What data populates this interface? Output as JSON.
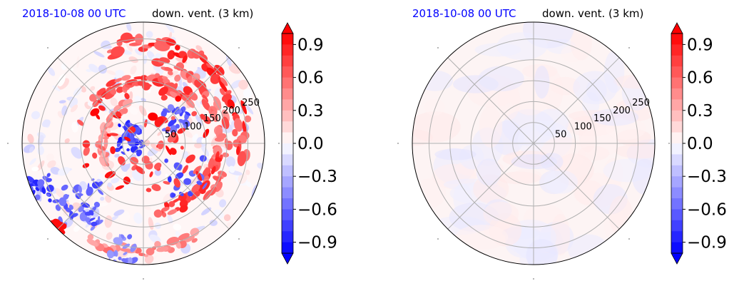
{
  "chart_data": [
    {
      "type": "heatmap",
      "projection": "polar",
      "title_left": "2018-10-08 00 UTC",
      "title_right": "down. vent. (3 km)",
      "title_left_color": "#0000ff",
      "radial_ticks": [
        "50",
        "100",
        "150",
        "200",
        "250"
      ],
      "radial_values": [
        50,
        100,
        150,
        200,
        250
      ],
      "rmax": 290,
      "angular_gridlines_deg": [
        0,
        45,
        90,
        135,
        180,
        225,
        270,
        315
      ],
      "grid": true,
      "colorbar": {
        "ticks": [
          "0.9",
          "0.6",
          "0.3",
          "0.0",
          "−0.3",
          "−0.6",
          "−0.9"
        ],
        "vmin": -1.0,
        "vmax": 1.0,
        "extend": "both",
        "levels": 20,
        "colormap": "bwr"
      },
      "field_description": "strong mixed values; red bands on north-east quadrant and outer rings, blue patches in south-west and center",
      "field_amplitude": "strong"
    },
    {
      "type": "heatmap",
      "projection": "polar",
      "title_left": "2018-10-08 00 UTC",
      "title_right": "down. vent. (3 km)",
      "title_left_color": "#0000ff",
      "radial_ticks": [
        "50",
        "100",
        "150",
        "200",
        "250"
      ],
      "radial_values": [
        50,
        100,
        150,
        200,
        250
      ],
      "rmax": 290,
      "angular_gridlines_deg": [
        0,
        45,
        90,
        135,
        180,
        225,
        270,
        315
      ],
      "grid": true,
      "colorbar": {
        "ticks": [
          "0.9",
          "0.6",
          "0.3",
          "0.0",
          "−0.3",
          "−0.6",
          "−0.9"
        ],
        "vmin": -1.0,
        "vmax": 1.0,
        "extend": "both",
        "levels": 20,
        "colormap": "bwr"
      },
      "field_description": "near-zero everywhere; faint pink and faint lavender",
      "field_amplitude": "weak"
    }
  ]
}
